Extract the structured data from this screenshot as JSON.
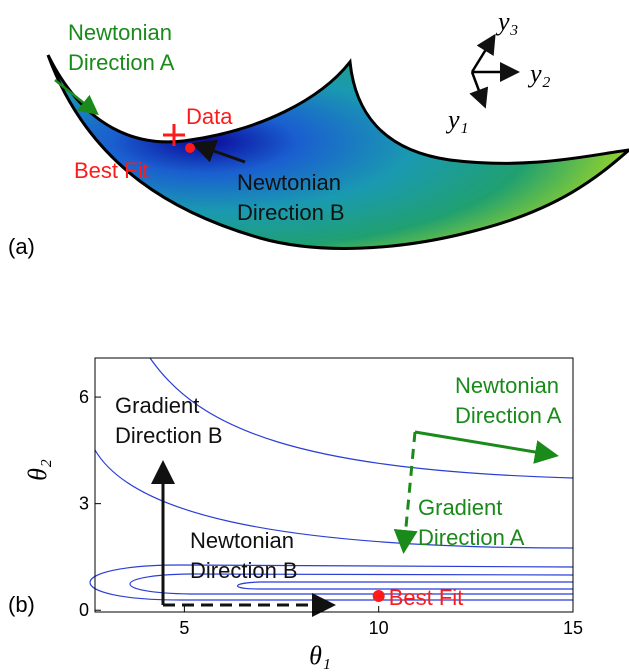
{
  "chart_data": [
    {
      "type": "surface",
      "label": "(a)",
      "annotations": [
        {
          "lines": [
            "Newtonian",
            "Direction A"
          ],
          "color": "#1a8a1a"
        },
        {
          "lines": [
            "Data"
          ],
          "color": "#ff1a1a"
        },
        {
          "lines": [
            "Best Fit"
          ],
          "color": "#ff1a1a"
        },
        {
          "lines": [
            "Newtonian",
            "Direction B"
          ],
          "color": "#111111"
        }
      ],
      "axes": [
        "y₁",
        "y₂",
        "y₃"
      ]
    },
    {
      "type": "contour",
      "label": "(b)",
      "xlabel": "θ₁",
      "ylabel": "θ₂",
      "xlim": [
        2.7,
        15
      ],
      "ylim": [
        -0.05,
        7.1
      ],
      "xticks": [
        5,
        10,
        15
      ],
      "yticks": [
        0,
        3,
        6
      ],
      "point": {
        "name": "Best Fit",
        "x": 10,
        "y": 0.4,
        "color": "#ff1a1a"
      },
      "annotations": [
        {
          "lines": [
            "Gradient",
            "Direction B"
          ],
          "color": "#111111"
        },
        {
          "lines": [
            "Newtonian",
            "Direction A"
          ],
          "color": "#1a8a1a"
        },
        {
          "lines": [
            "Gradient",
            "Direction A"
          ],
          "color": "#1a8a1a"
        },
        {
          "lines": [
            "Newtonian",
            "Direction B"
          ],
          "color": "#111111"
        }
      ]
    }
  ]
}
